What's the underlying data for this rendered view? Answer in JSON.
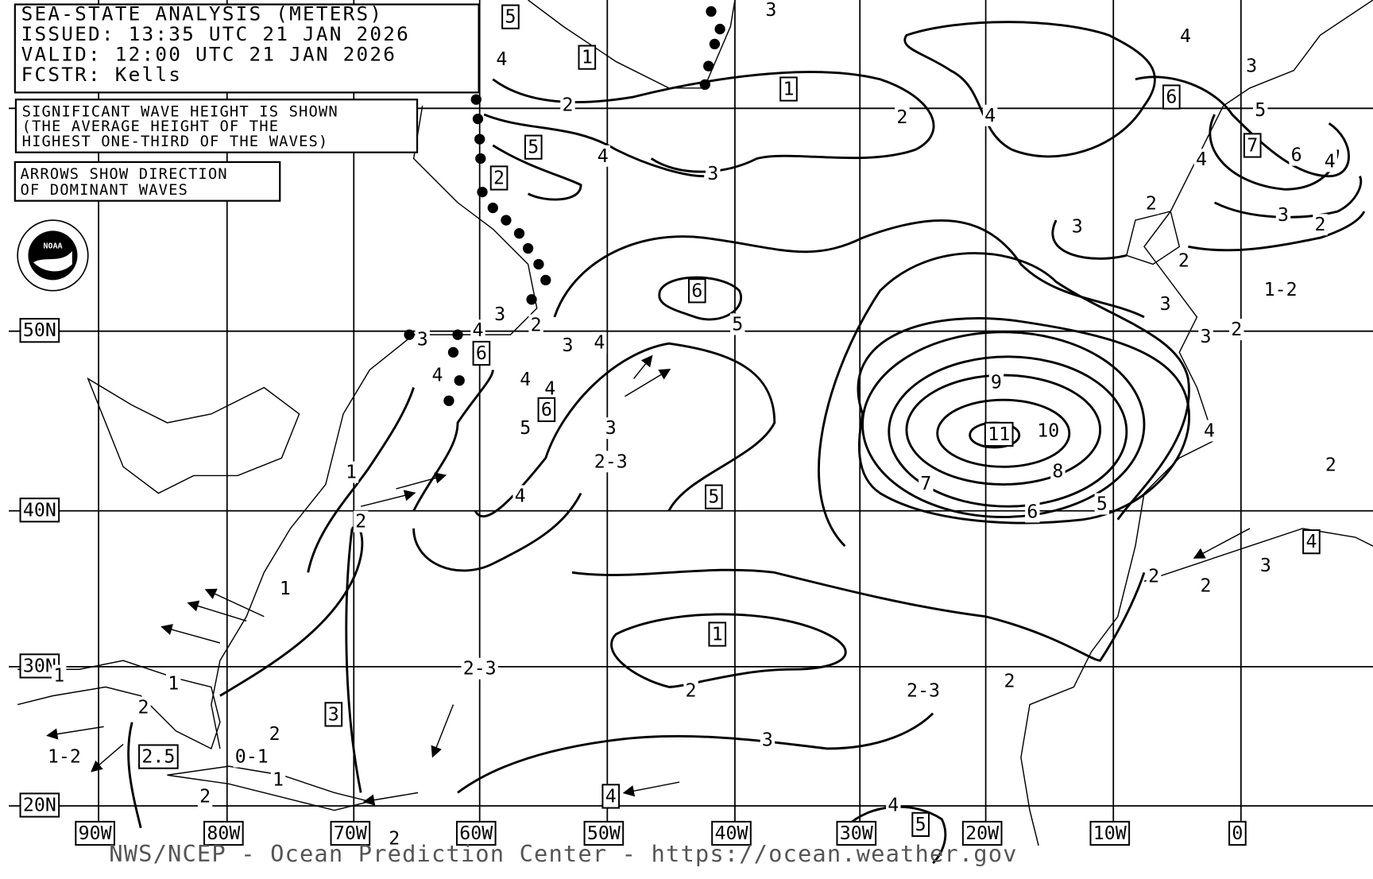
{
  "header": {
    "title": "SEA-STATE ANALYSIS (METERS)",
    "issued": "ISSUED: 13:35 UTC 21 JAN 2026",
    "valid": "VALID: 12:00 UTC 21 JAN 2026",
    "forecaster": "FCSTR: Kells"
  },
  "notes": [
    [
      "SIGNIFICANT WAVE HEIGHT IS SHOWN",
      "(THE AVERAGE HEIGHT OF THE",
      "HIGHEST ONE-THIRD OF THE WAVES)"
    ],
    [
      "ARROWS SHOW DIRECTION",
      "OF DOMINANT WAVES"
    ]
  ],
  "logo": "NOAA",
  "latitude_labels": [
    "50N",
    "40N",
    "30N",
    "20N"
  ],
  "longitude_labels": [
    "90W",
    "80W",
    "70W",
    "60W",
    "50W",
    "40W",
    "30W",
    "20W",
    "10W",
    "0"
  ],
  "contour_labels": [
    {
      "text": "5",
      "boxed": true
    },
    {
      "text": "3",
      "boxed": false
    },
    {
      "text": "1",
      "boxed": true
    },
    {
      "text": "4",
      "boxed": false
    },
    {
      "text": "1",
      "boxed": true
    },
    {
      "text": "4",
      "boxed": false
    },
    {
      "text": "3",
      "boxed": false
    },
    {
      "text": "2",
      "boxed": false
    },
    {
      "text": "2",
      "boxed": false
    },
    {
      "text": "4",
      "boxed": false
    },
    {
      "text": "6",
      "boxed": true
    },
    {
      "text": "5",
      "boxed": false
    },
    {
      "text": "5",
      "boxed": true
    },
    {
      "text": "4",
      "boxed": false
    },
    {
      "text": "3",
      "boxed": false
    },
    {
      "text": "7",
      "boxed": true
    },
    {
      "text": "6",
      "boxed": false
    },
    {
      "text": "4",
      "boxed": false
    },
    {
      "text": "4",
      "boxed": false
    },
    {
      "text": "2",
      "boxed": true
    },
    {
      "text": "2",
      "boxed": false
    },
    {
      "text": "3",
      "boxed": false
    },
    {
      "text": "3",
      "boxed": false
    },
    {
      "text": "2",
      "boxed": false
    },
    {
      "text": "2",
      "boxed": false
    },
    {
      "text": "6",
      "boxed": true
    },
    {
      "text": "1-2",
      "boxed": false
    },
    {
      "text": "3",
      "boxed": false
    },
    {
      "text": "3",
      "boxed": false
    },
    {
      "text": "2",
      "boxed": false
    },
    {
      "text": "5",
      "boxed": false
    },
    {
      "text": "3",
      "boxed": false
    },
    {
      "text": "4",
      "boxed": false
    },
    {
      "text": "3",
      "boxed": false
    },
    {
      "text": "2",
      "boxed": false
    },
    {
      "text": "3",
      "boxed": false
    },
    {
      "text": "4",
      "boxed": false
    },
    {
      "text": "6",
      "boxed": true
    },
    {
      "text": "4",
      "boxed": false
    },
    {
      "text": "4",
      "boxed": false
    },
    {
      "text": "4",
      "boxed": false
    },
    {
      "text": "9",
      "boxed": false
    },
    {
      "text": "6",
      "boxed": true
    },
    {
      "text": "5",
      "boxed": false
    },
    {
      "text": "3",
      "boxed": false
    },
    {
      "text": "11",
      "boxed": true
    },
    {
      "text": "10",
      "boxed": false
    },
    {
      "text": "4",
      "boxed": false
    },
    {
      "text": "2-3",
      "boxed": false
    },
    {
      "text": "8",
      "boxed": false
    },
    {
      "text": "2",
      "boxed": false
    },
    {
      "text": "1",
      "boxed": false
    },
    {
      "text": "4",
      "boxed": false
    },
    {
      "text": "5",
      "boxed": true
    },
    {
      "text": "7",
      "boxed": false
    },
    {
      "text": "5",
      "boxed": false
    },
    {
      "text": "6",
      "boxed": false
    },
    {
      "text": "2",
      "boxed": false
    },
    {
      "text": "4",
      "boxed": true
    },
    {
      "text": "3",
      "boxed": false
    },
    {
      "text": "2",
      "boxed": false
    },
    {
      "text": "2",
      "boxed": false
    },
    {
      "text": "1",
      "boxed": false
    },
    {
      "text": "1",
      "boxed": true
    },
    {
      "text": "2-3",
      "boxed": false
    },
    {
      "text": "1",
      "boxed": false
    },
    {
      "text": "1",
      "boxed": false
    },
    {
      "text": "2",
      "boxed": false
    },
    {
      "text": "2-3",
      "boxed": false
    },
    {
      "text": "2",
      "boxed": false
    },
    {
      "text": "3",
      "boxed": true
    },
    {
      "text": "2",
      "boxed": false
    },
    {
      "text": "2",
      "boxed": false
    },
    {
      "text": "3",
      "boxed": false
    },
    {
      "text": "1-2",
      "boxed": false
    },
    {
      "text": "2.5",
      "boxed": true
    },
    {
      "text": "0-1",
      "boxed": false
    },
    {
      "text": "1",
      "boxed": false
    },
    {
      "text": "2",
      "boxed": false
    },
    {
      "text": "4",
      "boxed": true
    },
    {
      "text": "4",
      "boxed": false
    },
    {
      "text": "5",
      "boxed": true
    },
    {
      "text": "2",
      "boxed": false
    }
  ],
  "footer": "NWS/NCEP - Ocean Prediction Center - https://ocean.weather.gov"
}
